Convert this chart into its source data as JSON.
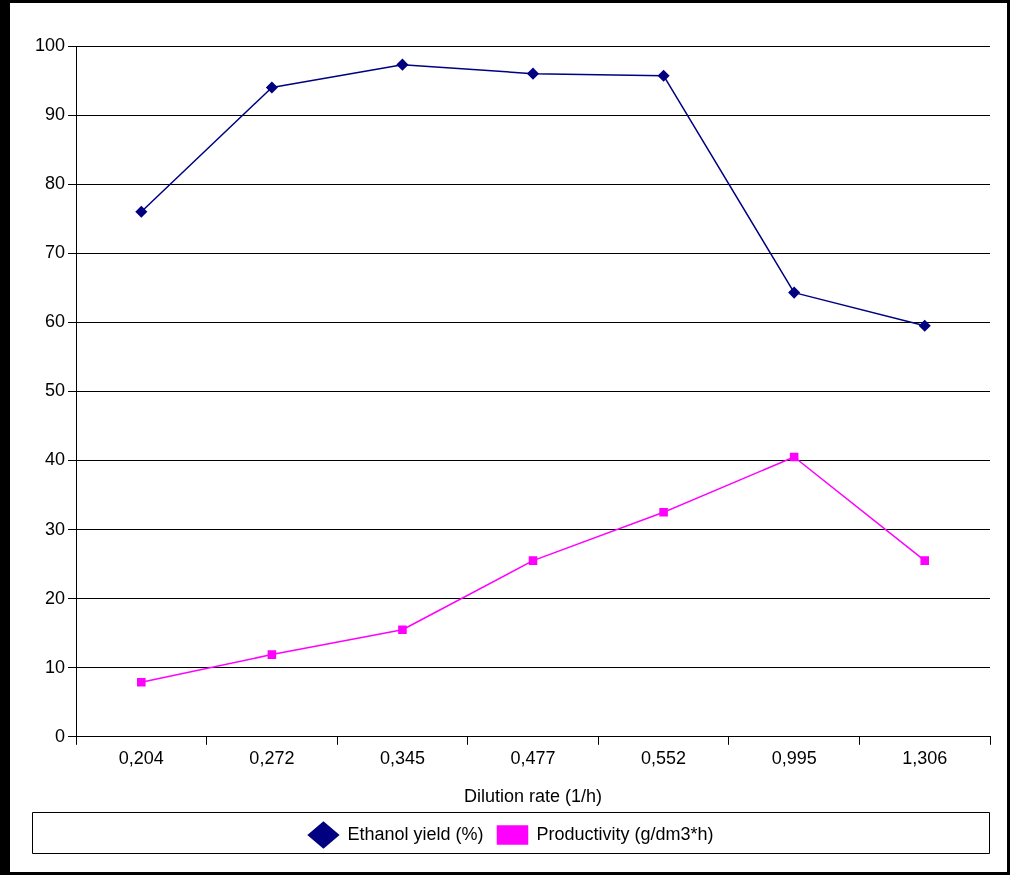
{
  "chart_data": {
    "type": "line",
    "xlabel": "Dilution rate (1/h)",
    "categories": [
      "0,204",
      "0,272",
      "0,345",
      "0,477",
      "0,552",
      "0,995",
      "1,306"
    ],
    "series": [
      {
        "name": "Ethanol yield (%)",
        "color": "#000080",
        "marker": "diamond",
        "values": [
          76,
          94,
          97.3,
          96,
          95.7,
          64.3,
          59.5
        ]
      },
      {
        "name": "Productivity (g/dm3*h)",
        "color": "#ff00ff",
        "marker": "square",
        "values": [
          7.9,
          11.9,
          15.5,
          25.5,
          32.5,
          40.5,
          25.5
        ]
      }
    ],
    "ylim": [
      0,
      100
    ],
    "yticks": [
      0,
      10,
      20,
      30,
      40,
      50,
      60,
      70,
      80,
      90,
      100
    ],
    "grid": "y",
    "legend": "bottom",
    "line_style": "solid"
  }
}
